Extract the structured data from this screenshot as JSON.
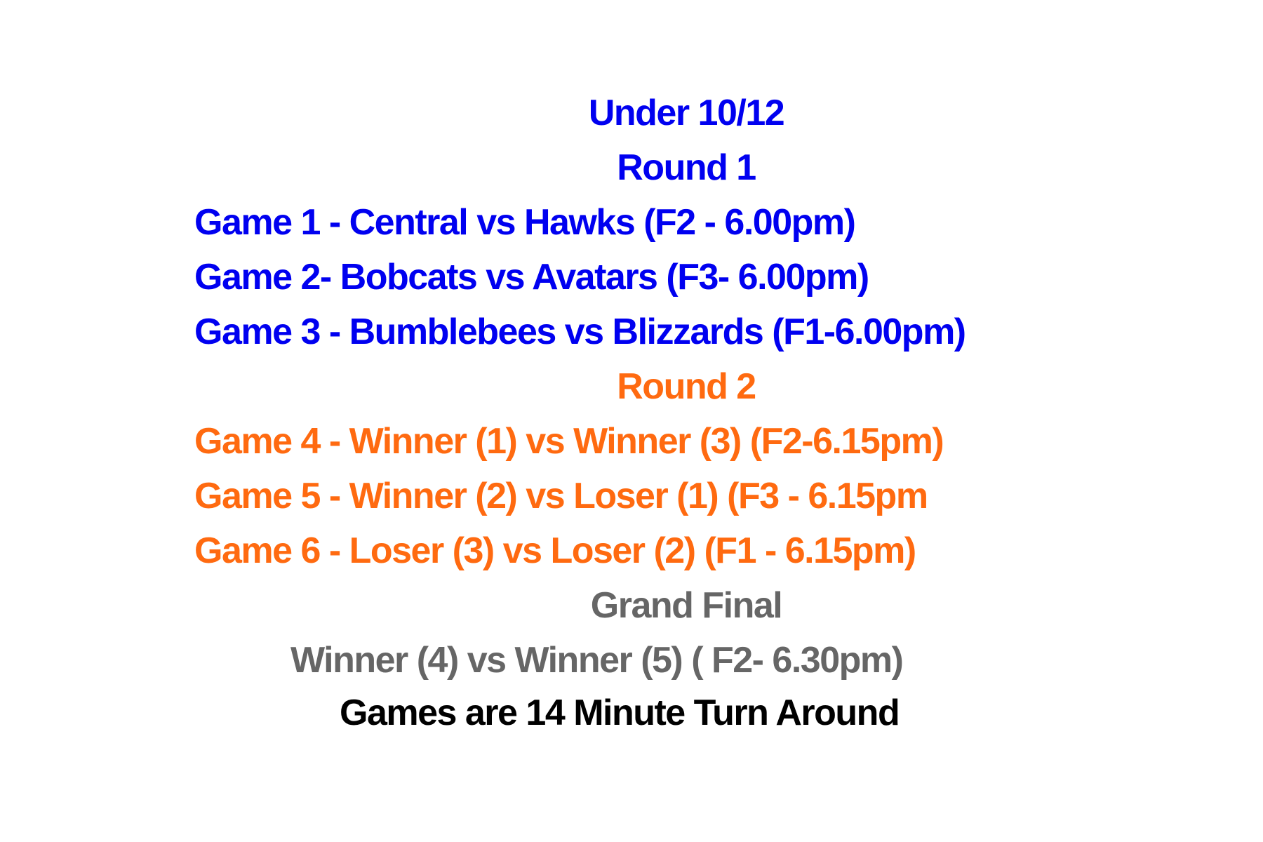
{
  "title": "Under 10/12",
  "round1": {
    "heading": "Round 1",
    "games": [
      "Game 1 - Central vs Hawks (F2 - 6.00pm)",
      "Game 2- Bobcats vs Avatars (F3- 6.00pm)",
      "Game 3 - Bumblebees vs Blizzards (F1-6.00pm)"
    ]
  },
  "round2": {
    "heading": "Round 2",
    "games": [
      "Game 4 - Winner (1) vs Winner (3) (F2-6.15pm)",
      "Game 5 - Winner (2) vs Loser (1) (F3 - 6.15pm",
      "Game 6 - Loser (3) vs Loser (2) (F1 - 6.15pm)"
    ]
  },
  "grand_final": {
    "heading": "Grand Final",
    "game": "Winner (4) vs Winner (5) ( F2- 6.30pm)"
  },
  "note": "Games are 14 Minute Turn Around",
  "colors": {
    "round1": "#0000f0",
    "round2": "#ff6a10",
    "final": "#666666",
    "note": "#000000"
  }
}
